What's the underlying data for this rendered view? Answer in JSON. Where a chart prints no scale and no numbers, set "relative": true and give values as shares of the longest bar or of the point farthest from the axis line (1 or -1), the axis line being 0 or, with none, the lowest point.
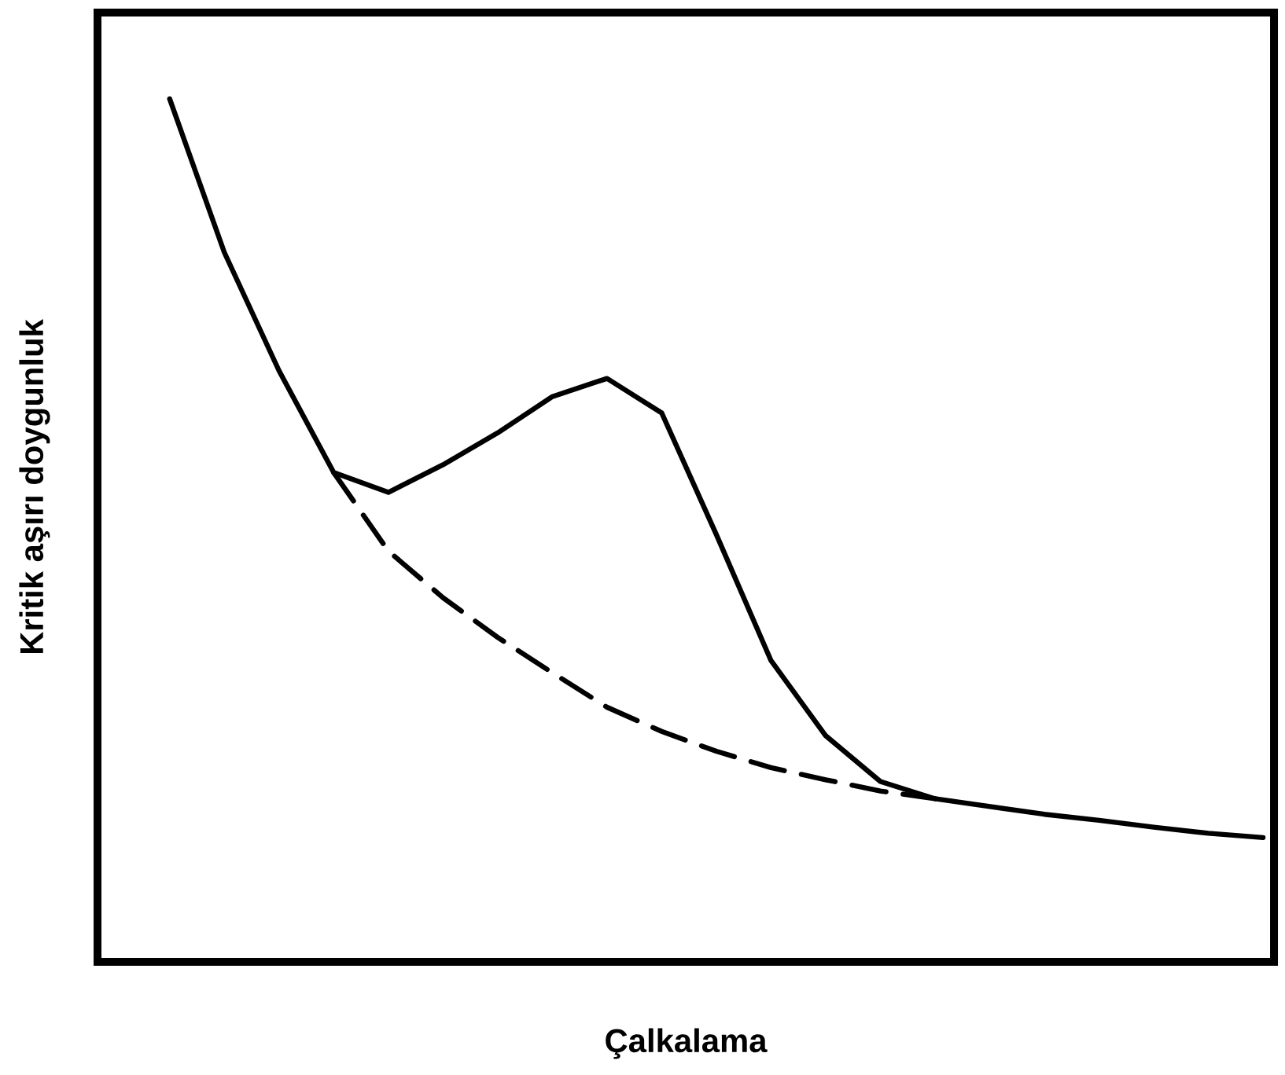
{
  "chart_data": {
    "type": "line",
    "relative": true,
    "xlabel": "Çalkalama",
    "ylabel": "Kritik aşırı doygunluk",
    "categories": [
      null,
      null,
      null,
      null,
      null,
      null,
      null,
      null,
      null,
      null,
      null,
      null,
      null,
      null,
      null,
      null,
      null,
      null,
      null,
      null,
      null
    ],
    "series": [
      {
        "color": "#000000",
        "line_style": "solid",
        "values": [
          1.0,
          0.822,
          0.685,
          0.567,
          0.544,
          0.576,
          0.613,
          0.655,
          0.676,
          0.636,
          0.495,
          0.349,
          0.262,
          0.209,
          0.189,
          0.18,
          0.171,
          0.164,
          0.156,
          0.149,
          0.144
        ]
      },
      {
        "color": "#000000",
        "line_style": "dashed",
        "values": [
          null,
          null,
          null,
          0.567,
          0.476,
          0.422,
          0.376,
          0.335,
          0.295,
          0.267,
          0.244,
          0.225,
          0.211,
          0.198,
          0.189,
          null,
          null,
          null,
          null,
          null,
          null
        ]
      }
    ],
    "marker": "none"
  }
}
